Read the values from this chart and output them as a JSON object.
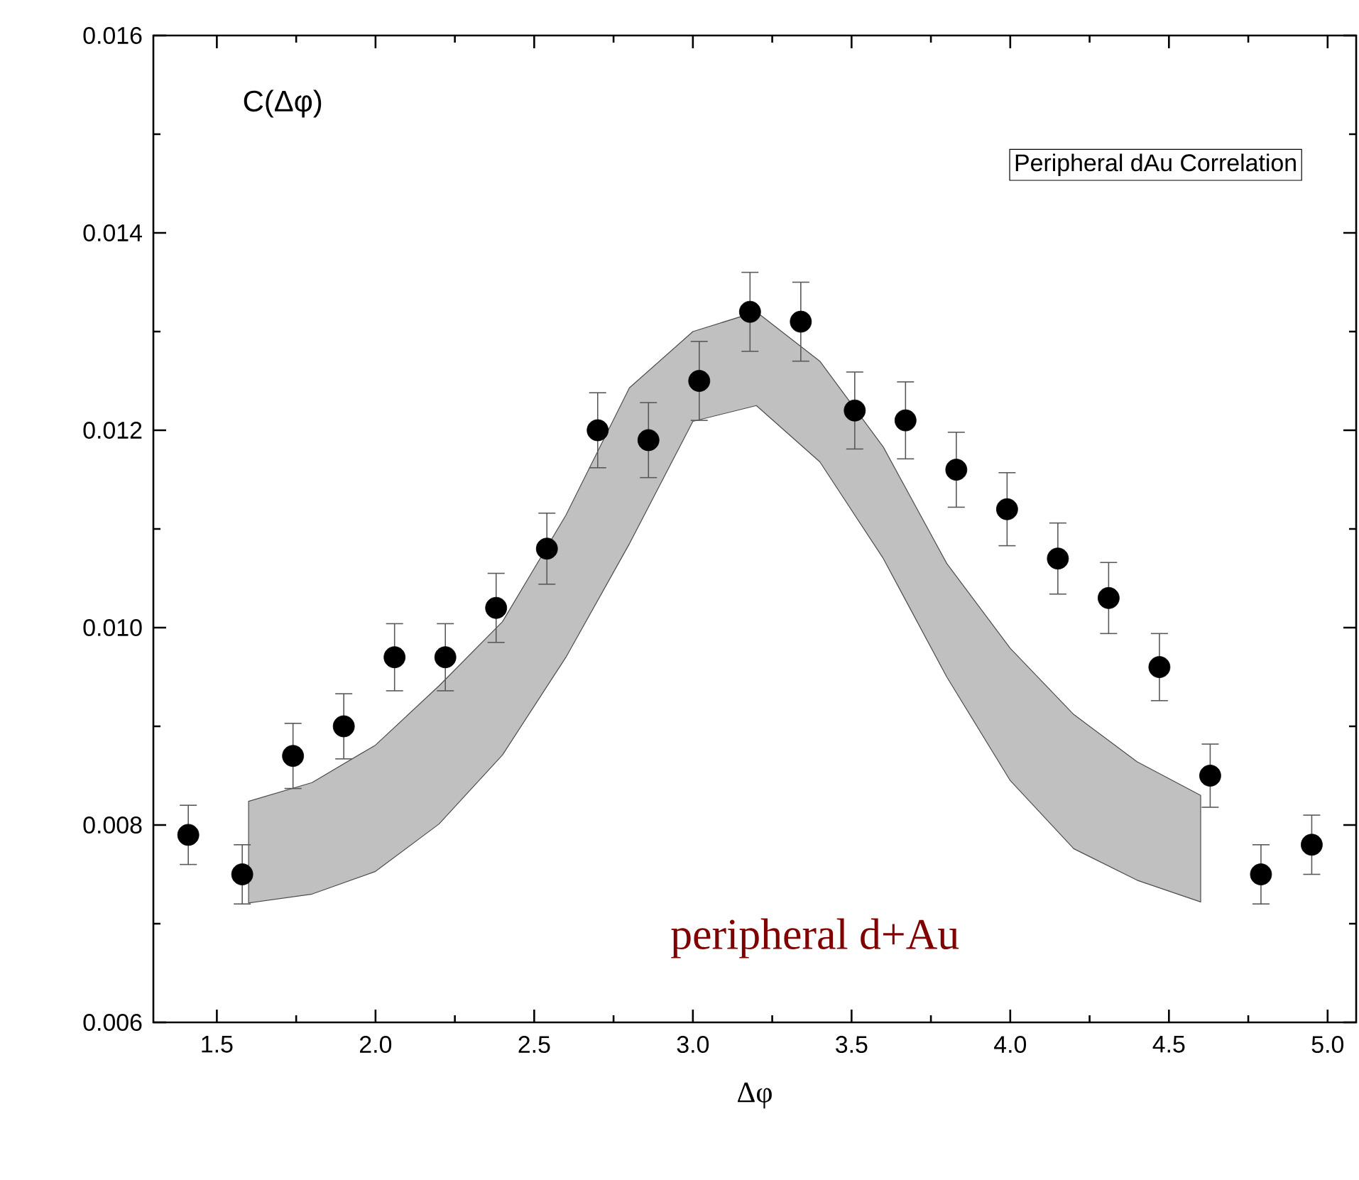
{
  "chart_data": {
    "type": "scatter",
    "title": "Peripheral dAu Correlation",
    "xlabel": "Δφ",
    "ylabel": "C(Δφ)",
    "annotations": [
      "peripheral d+Au"
    ],
    "xlim": [
      1.3,
      5.09
    ],
    "ylim": [
      0.006,
      0.016
    ],
    "xticks": [
      {
        "value": 1.5,
        "label": "1.5"
      },
      {
        "value": 2.0,
        "label": "2.0"
      },
      {
        "value": 2.5,
        "label": "2.5"
      },
      {
        "value": 3.0,
        "label": "3.0"
      },
      {
        "value": 3.5,
        "label": "3.5"
      },
      {
        "value": 4.0,
        "label": "4.0"
      },
      {
        "value": 4.5,
        "label": "4.5"
      },
      {
        "value": 5.0,
        "label": "5.0"
      }
    ],
    "yticks": [
      {
        "value": 0.006,
        "label": "0.006"
      },
      {
        "value": 0.008,
        "label": "0.008"
      },
      {
        "value": 0.01,
        "label": "0.010"
      },
      {
        "value": 0.012,
        "label": "0.012"
      },
      {
        "value": 0.014,
        "label": "0.014"
      },
      {
        "value": 0.016,
        "label": "0.016"
      }
    ],
    "marker": "circle",
    "grid": false,
    "series": [
      {
        "type": "area",
        "color": "#c0c0c0",
        "x": [
          1.6,
          1.8,
          2.0,
          2.2,
          2.4,
          2.6,
          2.8,
          3.0,
          3.2,
          3.4,
          3.6,
          3.8,
          4.0,
          4.2,
          4.4,
          4.6
        ],
        "values": [
          null,
          null,
          null,
          null,
          null,
          null,
          null,
          null,
          null,
          null,
          null,
          null,
          null,
          null,
          null,
          null
        ],
        "upper": [
          0.00824,
          0.00843,
          0.00881,
          0.00941,
          0.01006,
          0.01114,
          0.01243,
          0.013,
          0.0132,
          0.0127,
          0.01183,
          0.01065,
          0.00979,
          0.00912,
          0.00864,
          0.0083
        ],
        "lower": [
          0.00721,
          0.0073,
          0.00753,
          0.00801,
          0.00871,
          0.0097,
          0.01085,
          0.01209,
          0.01225,
          0.01168,
          0.0107,
          0.0095,
          0.00845,
          0.00776,
          0.00744,
          0.00722
        ]
      },
      {
        "color": "#000000",
        "x": [
          1.41,
          1.58,
          1.74,
          1.9,
          2.06,
          2.22,
          2.38,
          2.54,
          2.7,
          2.86,
          3.02,
          3.18,
          3.34,
          3.51,
          3.67,
          3.83,
          3.99,
          4.15,
          4.31,
          4.47,
          4.63,
          4.79,
          4.95
        ],
        "values": [
          0.0079,
          0.0075,
          0.0087,
          0.009,
          0.0097,
          0.0097,
          0.0102,
          0.0108,
          0.012,
          0.0119,
          0.0125,
          0.0132,
          0.0131,
          0.0122,
          0.0121,
          0.0116,
          0.0112,
          0.0107,
          0.0103,
          0.0096,
          0.0085,
          0.0075,
          0.0078
        ],
        "errors": [
          0.0003,
          0.0003,
          0.00033,
          0.00033,
          0.00034,
          0.00034,
          0.00035,
          0.00036,
          0.00038,
          0.00038,
          0.0004,
          0.0004,
          0.0004,
          0.00039,
          0.00039,
          0.00038,
          0.00037,
          0.00036,
          0.00036,
          0.00034,
          0.00032,
          0.0003,
          0.0003
        ]
      }
    ]
  }
}
